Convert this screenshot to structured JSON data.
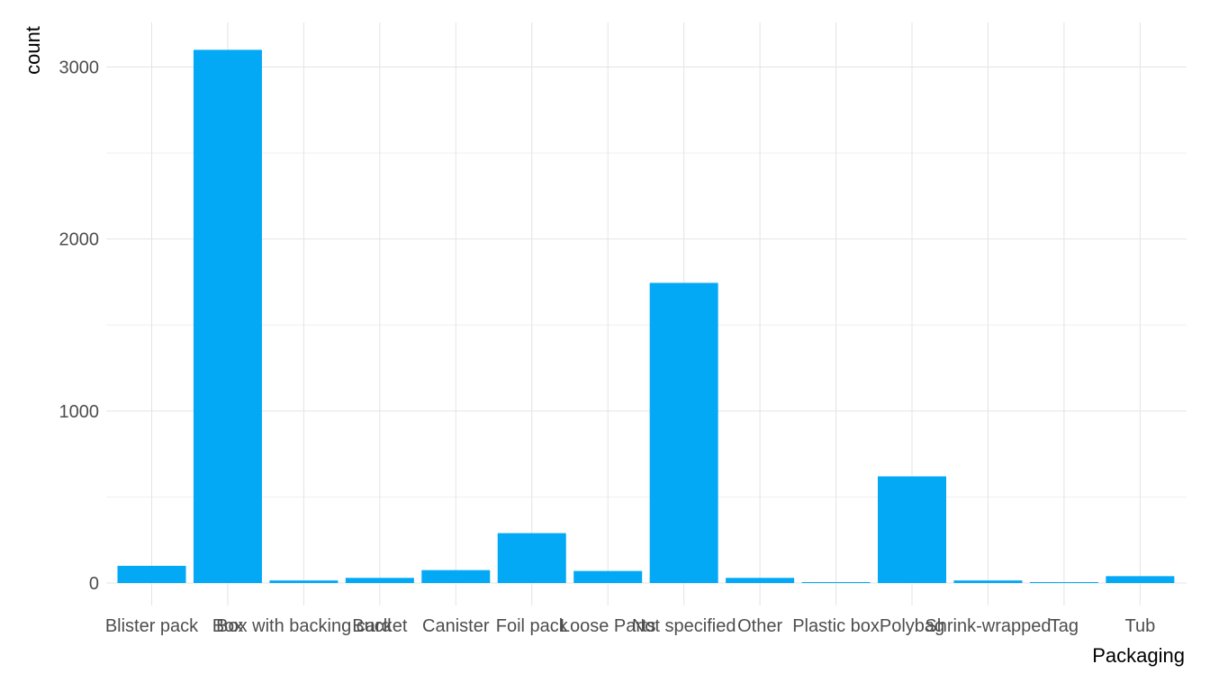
{
  "chart_data": {
    "type": "bar",
    "categories": [
      "Blister pack",
      "Box",
      "Box with backing card",
      "Bucket",
      "Canister",
      "Foil pack",
      "Loose Parts",
      "Not specified",
      "Other",
      "Plastic box",
      "Polybag",
      "Shrink-wrapped",
      "Tag",
      "Tub"
    ],
    "values": [
      100,
      3100,
      15,
      30,
      75,
      290,
      70,
      1745,
      30,
      3,
      620,
      15,
      3,
      40
    ],
    "title": "",
    "xlabel": "Packaging",
    "ylabel": "count",
    "ylim": [
      0,
      3200
    ],
    "yticks": [
      0,
      1000,
      2000,
      3000
    ],
    "grid": true,
    "bar_color": "#03A9F4"
  }
}
